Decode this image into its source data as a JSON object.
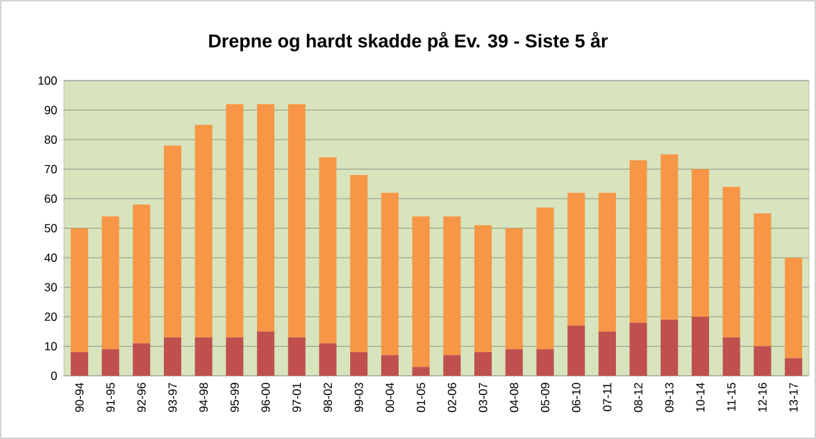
{
  "chart_data": {
    "type": "bar",
    "title": "Drepne og hardt skadde på Ev. 39 - Siste 5 år",
    "categories": [
      "90-94",
      "91-95",
      "92-96",
      "93-97",
      "94-98",
      "95-99",
      "96-00",
      "97-01",
      "98-02",
      "99-03",
      "00-04",
      "01-05",
      "02-06",
      "03-07",
      "04-08",
      "05-09",
      "06-10",
      "07-11",
      "08-12",
      "09-13",
      "10-14",
      "11-15",
      "12-16",
      "13-17"
    ],
    "stacked": true,
    "series": [
      {
        "color": "#c0504d",
        "values": [
          8,
          9,
          11,
          13,
          13,
          13,
          15,
          13,
          11,
          8,
          7,
          3,
          7,
          8,
          9,
          9,
          17,
          15,
          18,
          19,
          20,
          13,
          10,
          6
        ]
      },
      {
        "color": "#f79646",
        "values": [
          42,
          45,
          47,
          65,
          72,
          79,
          77,
          79,
          63,
          60,
          55,
          51,
          47,
          43,
          41,
          48,
          45,
          47,
          55,
          56,
          50,
          51,
          45,
          34
        ]
      }
    ],
    "ylim": [
      0,
      100
    ],
    "yticks": [
      0,
      10,
      20,
      30,
      40,
      50,
      60,
      70,
      80,
      90,
      100
    ],
    "grid": "y"
  }
}
